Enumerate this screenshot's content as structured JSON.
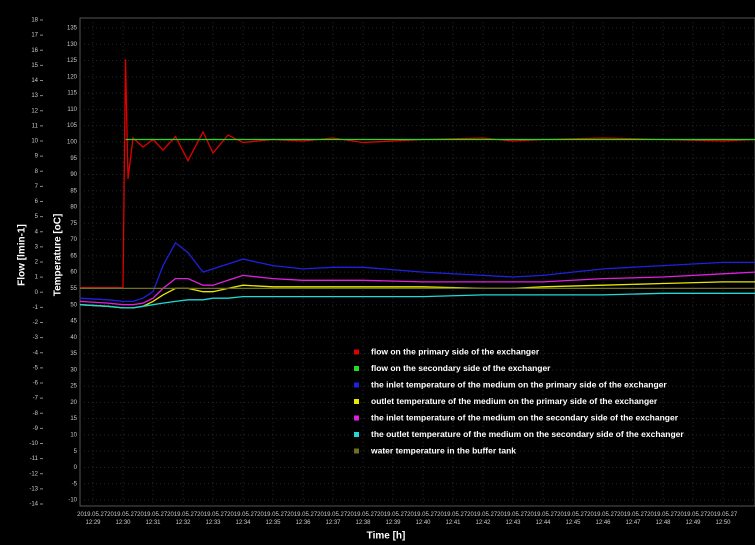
{
  "chart_data": {
    "type": "line",
    "ylabel": "Flow [lmin-1]",
    "y2label": "Temperature [oC]",
    "xlabel": "Time [h]",
    "ylim": [
      -14,
      18
    ],
    "yticks": [
      -14,
      -13,
      -12,
      -11,
      -10,
      -9,
      -8,
      -7,
      -6,
      -5,
      -4,
      -3,
      -2,
      -1,
      0,
      1,
      2,
      3,
      4,
      5,
      6,
      7,
      8,
      9,
      10,
      11,
      12,
      13,
      14,
      15,
      16,
      17,
      18
    ],
    "y2lim": [
      -10,
      135
    ],
    "y2ticks": [
      -10,
      -5,
      0,
      5,
      10,
      15,
      20,
      25,
      30,
      35,
      40,
      45,
      50,
      55,
      60,
      65,
      70,
      75,
      80,
      85,
      90,
      95,
      100,
      105,
      110,
      115,
      120,
      125,
      130,
      135
    ],
    "xlim": [
      "2019.05.27 12:28:34",
      "2019.05.27 12:51:04"
    ],
    "xticks": [
      "2019.05.27 12:29",
      "2019.05.27 12:30",
      "2019.05.27 12:31",
      "2019.05.27 12:32",
      "2019.05.27 12:33",
      "2019.05.27 12:34",
      "2019.05.27 12:35",
      "2019.05.27 12:36",
      "2019.05.27 12:37",
      "2019.05.27 12:38",
      "2019.05.27 12:39",
      "2019.05.27 12:40",
      "2019.05.27 12:41",
      "2019.05.27 12:42",
      "2019.05.27 12:43",
      "2019.05.27 12:44",
      "2019.05.27 12:45",
      "2019.05.27 12:46",
      "2019.05.27 12:47",
      "2019.05.27 12:48",
      "2019.05.27 12:49",
      "2019.05.27 12:50"
    ],
    "grid": true,
    "x": [
      "2019.05.27 12:28:34",
      "2019.05.27 12:29:30",
      "2019.05.27 12:30:00",
      "2019.05.27 12:30:05",
      "2019.05.27 12:30:10",
      "2019.05.27 12:30:20",
      "2019.05.27 12:30:40",
      "2019.05.27 12:31:00",
      "2019.05.27 12:31:20",
      "2019.05.27 12:31:45",
      "2019.05.27 12:32:10",
      "2019.05.27 12:32:40",
      "2019.05.27 12:33:00",
      "2019.05.27 12:33:30",
      "2019.05.27 12:34:00",
      "2019.05.27 12:35:00",
      "2019.05.27 12:36:00",
      "2019.05.27 12:37:00",
      "2019.05.27 12:38:00",
      "2019.05.27 12:40:00",
      "2019.05.27 12:42:00",
      "2019.05.27 12:43:00",
      "2019.05.27 12:44:00",
      "2019.05.27 12:46:00",
      "2019.05.27 12:48:00",
      "2019.05.27 12:50:00",
      "2019.05.27 12:51:04"
    ],
    "series": [
      {
        "name": "flow on the primary side of the exchanger",
        "color": "#e00000",
        "values": [
          0.3,
          0.3,
          0.3,
          15.4,
          7.5,
          10.2,
          9.6,
          10.1,
          9.4,
          10.3,
          8.7,
          10.6,
          9.2,
          10.4,
          9.9,
          10.1,
          10.0,
          10.2,
          9.9,
          10.1,
          10.2,
          10.0,
          10.1,
          10.2,
          10.1,
          10.0,
          10.1
        ]
      },
      {
        "name": "flow on the secondary side of the exchanger",
        "color": "#22dd22",
        "values": [
          null,
          null,
          null,
          10.1,
          10.1,
          10.1,
          10.1,
          10.1,
          10.1,
          10.1,
          10.1,
          10.1,
          10.1,
          10.1,
          10.1,
          10.1,
          10.1,
          10.1,
          10.1,
          10.1,
          10.1,
          10.1,
          10.1,
          10.1,
          10.1,
          10.1,
          10.1
        ]
      },
      {
        "name": "the inlet temperature of the medium on the primary side of the exchanger",
        "color": "#2020e0",
        "axis": "y2",
        "values": [
          52,
          51.5,
          51,
          51,
          51,
          51,
          52,
          54,
          62,
          69,
          66,
          60,
          61,
          62.5,
          64,
          62,
          61,
          61.5,
          61.5,
          60,
          59,
          58.5,
          59,
          61,
          62,
          63,
          63
        ]
      },
      {
        "name": "outlet temperature of the medium on the primary side of the exchanger",
        "color": "#e8e800",
        "axis": "y2",
        "values": [
          50,
          49.5,
          49,
          49,
          49,
          49,
          49.5,
          51,
          53,
          55,
          55,
          54,
          54,
          55,
          56,
          55.5,
          55.5,
          55.5,
          55.5,
          55.5,
          55,
          55,
          55.5,
          56,
          56.5,
          57,
          57
        ]
      },
      {
        "name": "the inlet temperature of the medium on the secondary side of the exchanger",
        "color": "#e020e0",
        "axis": "y2",
        "values": [
          51,
          50.5,
          50,
          50,
          50,
          50,
          50.5,
          52,
          55,
          58,
          58,
          56,
          56,
          57.5,
          59,
          58,
          57.5,
          57.5,
          57.5,
          57,
          57,
          57,
          57,
          58,
          58.5,
          59.5,
          60
        ]
      },
      {
        "name": "the outlet temperature of the medium on the secondary side of the exchanger",
        "color": "#20d8d8",
        "axis": "y2",
        "values": [
          50,
          49.5,
          49,
          49,
          49,
          49,
          49.5,
          50,
          50.5,
          51,
          51.5,
          51.5,
          52,
          52,
          52.5,
          52.5,
          52.5,
          52.5,
          52.5,
          52.5,
          53,
          53,
          53,
          53,
          53.5,
          53.5,
          53.5
        ]
      },
      {
        "name": "water temperature in the buffer tank",
        "color": "#707020",
        "axis": "y2",
        "values": [
          55,
          55,
          55,
          55,
          55,
          55,
          55,
          55,
          55,
          55,
          55,
          55,
          55,
          55,
          55,
          55,
          55,
          55,
          55,
          55,
          55,
          55,
          55,
          55,
          55,
          55,
          55
        ]
      }
    ]
  }
}
